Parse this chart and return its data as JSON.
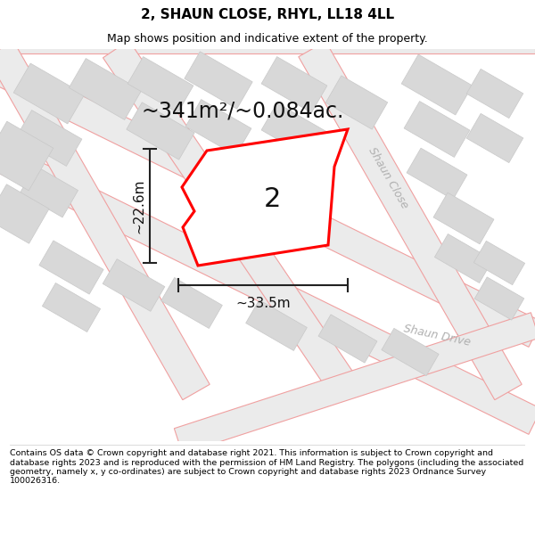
{
  "title": "2, SHAUN CLOSE, RHYL, LL18 4LL",
  "subtitle": "Map shows position and indicative extent of the property.",
  "area_text": "~341m²/~0.084ac.",
  "width_label": "~33.5m",
  "height_label": "~22.6m",
  "plot_number": "2",
  "footer": "Contains OS data © Crown copyright and database right 2021. This information is subject to Crown copyright and database rights 2023 and is reproduced with the permission of HM Land Registry. The polygons (including the associated geometry, namely x, y co-ordinates) are subject to Crown copyright and database rights 2023 Ordnance Survey 100026316.",
  "map_bg": "#ffffff",
  "road_line_color": "#f0a0a0",
  "road_fill_color": "#ebebeb",
  "building_fill": "#d8d8d8",
  "building_stroke": "#c8c8c8",
  "plot_stroke": "#ff0000",
  "plot_fill": "#ffffff",
  "dim_color": "#222222",
  "street_label_color": "#b0b0b0",
  "title_fontsize": 11,
  "subtitle_fontsize": 9,
  "area_fontsize": 17,
  "plot_num_fontsize": 22,
  "dim_fontsize": 11,
  "street_fontsize": 9,
  "footer_fontsize": 6.8
}
